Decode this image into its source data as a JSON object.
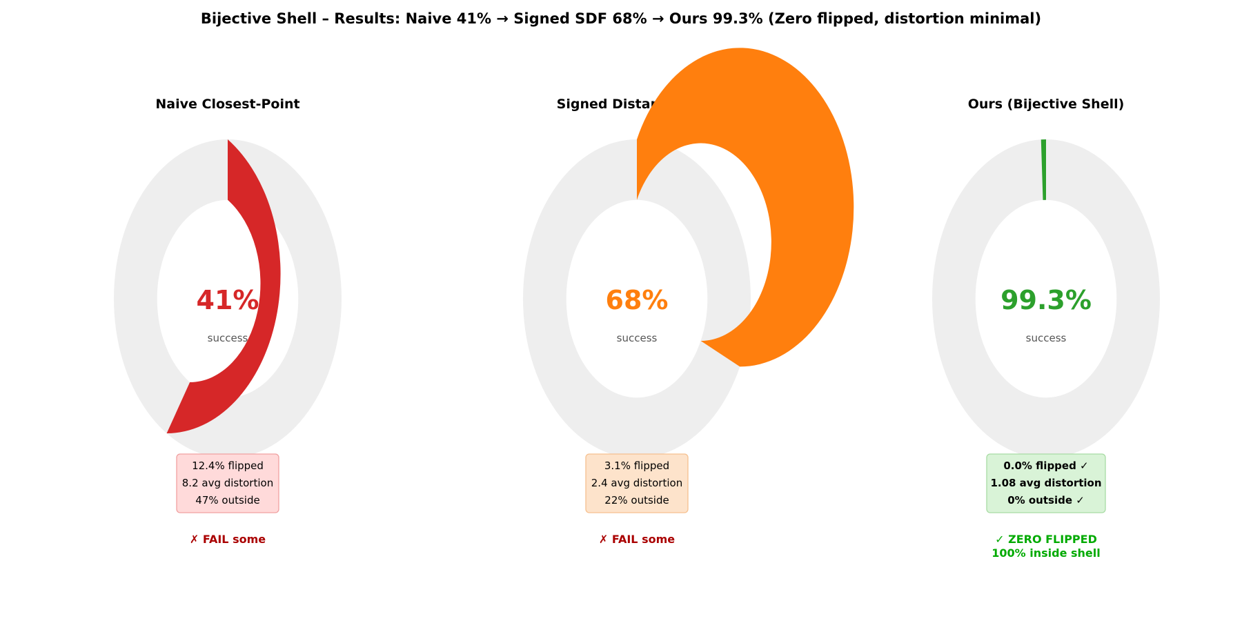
{
  "title": "Bijective Shell – Results: Naive 41% → Signed SDF 68% → Ours 99.3% (Zero flipped, distortion minimal)",
  "track_color": "#eeeeee",
  "chart_data": [
    {
      "type": "pie",
      "title": "Naive Closest-Point",
      "value": 41,
      "value_label": "41%",
      "sublabel": "success",
      "color": "#d62728",
      "metrics": [
        "12.4% flipped",
        "8.2 avg distortion",
        "47% outside"
      ],
      "metrics_bold": false,
      "box_fill": "#ffdada",
      "box_border": "#f0a0a0",
      "verdict": [
        "✗ FAIL some"
      ],
      "verdict_color": "#aa0000"
    },
    {
      "type": "pie",
      "title": "Signed Distance Field",
      "value": 68,
      "value_label": "68%",
      "sublabel": "success",
      "color": "#ff7f0e",
      "metrics": [
        "3.1% flipped",
        "2.4 avg distortion",
        "22% outside"
      ],
      "metrics_bold": false,
      "box_fill": "#fde3cb",
      "box_border": "#f6c08f",
      "verdict": [
        "✗ FAIL some"
      ],
      "verdict_color": "#aa0000"
    },
    {
      "type": "pie",
      "title": "Ours (Bijective Shell)",
      "value": 99.3,
      "value_label": "99.3%",
      "sublabel": "success",
      "color": "#2ca02c",
      "metrics": [
        "0.0% flipped ✓",
        "1.08 avg distortion",
        "0% outside ✓"
      ],
      "metrics_bold": true,
      "box_fill": "#d9f3d7",
      "box_border": "#a8dca4",
      "verdict": [
        "✓ ZERO FLIPPED",
        "100% inside shell"
      ],
      "verdict_color": "#00aa00"
    }
  ]
}
